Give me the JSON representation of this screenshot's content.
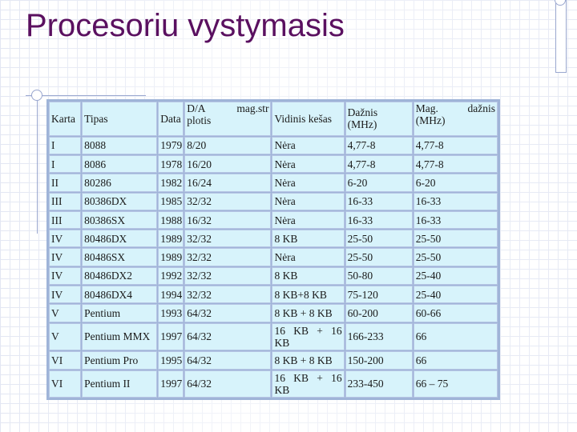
{
  "slide": {
    "title": "Procesoriu vystymasis"
  },
  "table": {
    "headers": {
      "karta": "Karta",
      "tipas": "Tipas",
      "data": "Data",
      "da_plotis_top": "D/A",
      "da_plotis_bottom": "plotis",
      "mag_str": "mag.str",
      "vidinis_kesas": "Vidinis kešas",
      "daznis_top": "Dažnis",
      "daznis_bottom": "(MHz)",
      "mag_daznis_top": "Mag.",
      "mag_daznis_right": "dažnis",
      "mag_daznis_bottom": "(MHz)"
    },
    "rows": [
      {
        "karta": "I",
        "tipas": "8088",
        "data": "1979",
        "plotis": "8/20",
        "kesas": "Nėra",
        "daznis": "4,77-8",
        "mag": "4,77-8"
      },
      {
        "karta": "I",
        "tipas": "8086",
        "data": "1978",
        "plotis": "16/20",
        "kesas": "Nėra",
        "daznis": "4,77-8",
        "mag": "4,77-8"
      },
      {
        "karta": "II",
        "tipas": "80286",
        "data": "1982",
        "plotis": "16/24",
        "kesas": "Nėra",
        "daznis": "6-20",
        "mag": "6-20"
      },
      {
        "karta": "III",
        "tipas": "80386DX",
        "data": "1985",
        "plotis": "32/32",
        "kesas": "Nėra",
        "daznis": "16-33",
        "mag": "16-33"
      },
      {
        "karta": "III",
        "tipas": "80386SX",
        "data": "1988",
        "plotis": "16/32",
        "kesas": "Nėra",
        "daznis": "16-33",
        "mag": "16-33"
      },
      {
        "karta": "IV",
        "tipas": "80486DX",
        "data": "1989",
        "plotis": "32/32",
        "kesas": "8 KB",
        "daznis": "25-50",
        "mag": "25-50"
      },
      {
        "karta": "IV",
        "tipas": "80486SX",
        "data": "1989",
        "plotis": "32/32",
        "kesas": "Nėra",
        "daznis": "25-50",
        "mag": "25-50"
      },
      {
        "karta": "IV",
        "tipas": "80486DX2",
        "data": "1992",
        "plotis": "32/32",
        "kesas": "8 KB",
        "daznis": "50-80",
        "mag": "25-40"
      },
      {
        "karta": "IV",
        "tipas": "80486DX4",
        "data": "1994",
        "plotis": "32/32",
        "kesas": "8 KB+8 KB",
        "daznis": "75-120",
        "mag": "25-40"
      },
      {
        "karta": "V",
        "tipas": "Pentium",
        "data": "1993",
        "plotis": "64/32",
        "kesas": "8 KB + 8 KB",
        "daznis": "60-200",
        "mag": "60-66"
      },
      {
        "karta": "V",
        "tipas": "Pentium MMX",
        "data": "1997",
        "plotis": "64/32",
        "kesas": "16 KB + 16 KB",
        "daznis": "166-233",
        "mag": "66"
      },
      {
        "karta": "VI",
        "tipas": "Pentium Pro",
        "data": "1995",
        "plotis": "64/32",
        "kesas": "8 KB + 8 KB",
        "daznis": "150-200",
        "mag": "66"
      },
      {
        "karta": "VI",
        "tipas": "Pentium II",
        "data": "1997",
        "plotis": "64/32",
        "kesas": "16 KB + 16 KB",
        "daznis": "233-450",
        "mag": "66 – 75"
      }
    ]
  }
}
